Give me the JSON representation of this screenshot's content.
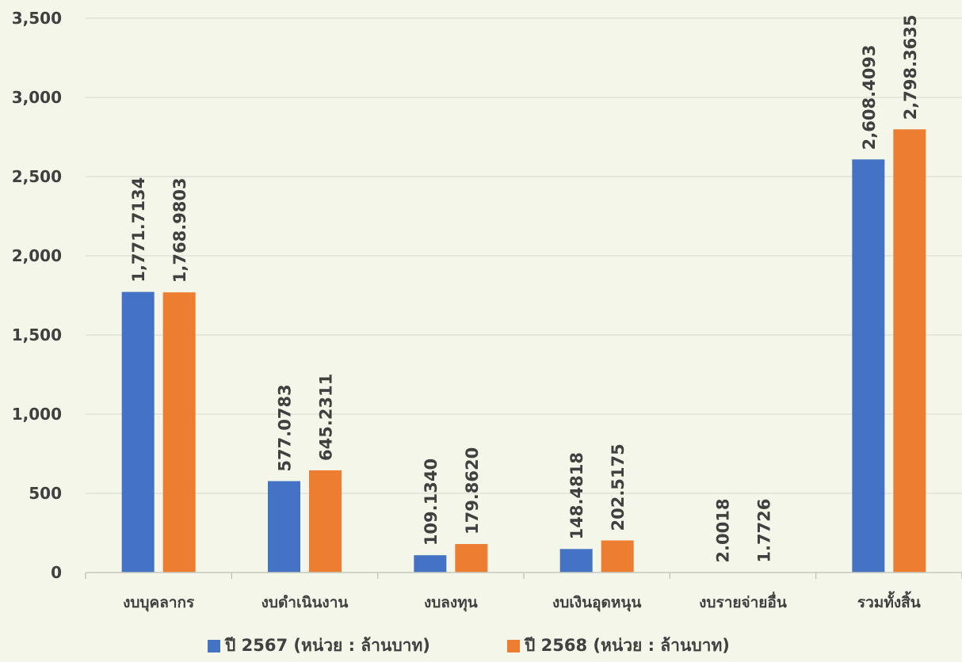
{
  "chart_data": {
    "type": "bar",
    "title": "",
    "xlabel": "",
    "ylabel": "",
    "ylim": [
      0,
      3500
    ],
    "y_ticks": [
      0,
      500,
      1000,
      1500,
      2000,
      2500,
      3000,
      3500
    ],
    "y_tick_labels": [
      "0",
      "500",
      "1,000",
      "1,500",
      "2,000",
      "2,500",
      "3,000",
      "3,500"
    ],
    "grid": true,
    "legend_position": "bottom",
    "categories": [
      "งบบุคลากร",
      "งบดำเนินงาน",
      "งบลงทุน",
      "งบเงินอุดหนุน",
      "งบรายจ่ายอื่น",
      "รวมทั้งสิ้น"
    ],
    "series": [
      {
        "name": "ปี 2567 (หน่วย : ล้านบาท)",
        "color": "#4472c4",
        "values": [
          1771.7134,
          577.0783,
          109.134,
          148.4818,
          2.0018,
          2608.4093
        ],
        "labels": [
          "1,771.7134",
          "577.0783",
          "109.1340",
          "148.4818",
          "2.0018",
          "2,608.4093"
        ]
      },
      {
        "name": "ปี 2568 (หน่วย : ล้านบาท)",
        "color": "#ed7d31",
        "values": [
          1768.9803,
          645.2311,
          179.862,
          202.5175,
          1.7726,
          2798.3635
        ],
        "labels": [
          "1,768.9803",
          "645.2311",
          "179.8620",
          "202.5175",
          "1.7726",
          "2,798.3635"
        ]
      }
    ]
  }
}
